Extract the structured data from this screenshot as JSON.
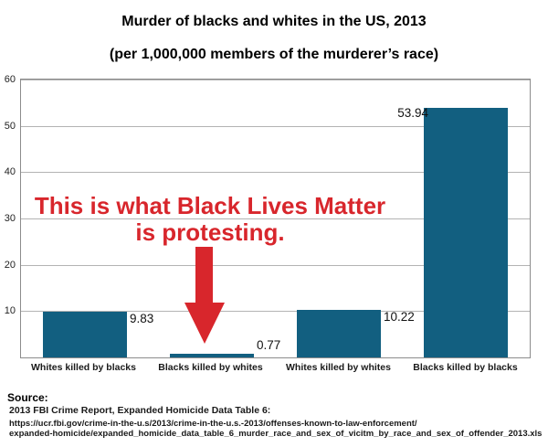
{
  "title": "Murder of blacks and whites in the US, 2013",
  "subtitle": "(per 1,000,000 members of the murderer’s race)",
  "chart_data": {
    "type": "bar",
    "categories": [
      "Whites killed by blacks",
      "Blacks killed by whites",
      "Whites killed by whites",
      "Blacks killed by blacks"
    ],
    "values": [
      9.83,
      0.77,
      10.22,
      53.94
    ],
    "value_labels": [
      "9.83",
      "0.77",
      "10.22",
      "53.94"
    ],
    "value_label_side": [
      "right",
      "right",
      "right",
      "left"
    ],
    "ylim": [
      0,
      60
    ],
    "yticks": [
      10,
      20,
      30,
      40,
      50,
      60
    ],
    "grid": true,
    "legend": "none",
    "bar_color": "#125f80",
    "gridline_color": "#b3b3b3",
    "title": "Murder of blacks and whites in the US, 2013",
    "xlabel": "",
    "ylabel": ""
  },
  "annotation": {
    "line1": "This is what Black Lives Matter",
    "line2": "is protesting.",
    "color": "#d8262c",
    "target_category": "Blacks killed by whites"
  },
  "source": {
    "heading": "Source:",
    "line1": "2013 FBI Crime Report, Expanded Homicide Data Table 6:",
    "url_line1": "https://ucr.fbi.gov/crime-in-the-u.s/2013/crime-in-the-u.s.-2013/offenses-known-to-law-enforcement/",
    "url_line2": "expanded-homicide/expanded_homicide_data_table_6_murder_race_and_sex_of_vicitm_by_race_and_sex_of_offender_2013.xls"
  }
}
